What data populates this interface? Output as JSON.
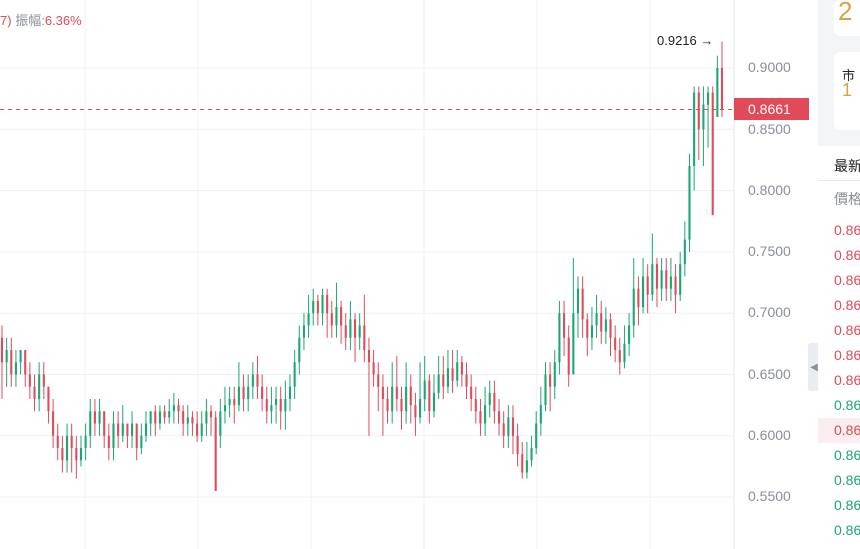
{
  "chart_info": {
    "prefix": "7)",
    "amplitude_label": "振幅:",
    "amplitude_value": "6.36%"
  },
  "current_price": "0.8661",
  "max_label": "0.9216 →",
  "colors": {
    "up": "#e04a59",
    "down": "#19a774",
    "grid": "#eef0f3",
    "accent": "#d9a441"
  },
  "right_panel": {
    "card1_text": "2",
    "card2_small": "市",
    "card2_big": "1",
    "tab_label": "最新",
    "price_header": "價格",
    "order_rows": [
      {
        "price": "0.86",
        "side": "sell"
      },
      {
        "price": "0.86",
        "side": "sell"
      },
      {
        "price": "0.86",
        "side": "sell"
      },
      {
        "price": "0.86",
        "side": "sell"
      },
      {
        "price": "0.86",
        "side": "sell"
      },
      {
        "price": "0.86",
        "side": "sell"
      },
      {
        "price": "0.86",
        "side": "sell"
      },
      {
        "price": "0.86",
        "side": "buy"
      },
      {
        "price": "0.86",
        "side": "sell"
      },
      {
        "price": "0.86",
        "side": "buy"
      },
      {
        "price": "0.86",
        "side": "buy"
      },
      {
        "price": "0.86",
        "side": "buy"
      },
      {
        "price": "0.86",
        "side": "buy"
      }
    ]
  },
  "chart_data": {
    "type": "candlestick",
    "y_ticks": [
      "0.9000",
      "0.8500",
      "0.8000",
      "0.7500",
      "0.7000",
      "0.6500",
      "0.6000",
      "0.5500"
    ],
    "y_range": [
      0.5,
      0.95
    ],
    "grid": true,
    "last_price": 0.8661,
    "max_price": 0.9216,
    "candles": [
      [
        0.68,
        0.66,
        0.69,
        0.63
      ],
      [
        0.66,
        0.67,
        0.68,
        0.64
      ],
      [
        0.67,
        0.65,
        0.68,
        0.64
      ],
      [
        0.65,
        0.66,
        0.67,
        0.64
      ],
      [
        0.66,
        0.67,
        0.67,
        0.65
      ],
      [
        0.67,
        0.65,
        0.67,
        0.64
      ],
      [
        0.65,
        0.64,
        0.66,
        0.63
      ],
      [
        0.64,
        0.63,
        0.65,
        0.62
      ],
      [
        0.63,
        0.65,
        0.66,
        0.62
      ],
      [
        0.65,
        0.64,
        0.66,
        0.63
      ],
      [
        0.64,
        0.62,
        0.64,
        0.61
      ],
      [
        0.62,
        0.6,
        0.63,
        0.59
      ],
      [
        0.6,
        0.59,
        0.61,
        0.58
      ],
      [
        0.59,
        0.58,
        0.6,
        0.57
      ],
      [
        0.58,
        0.6,
        0.61,
        0.57
      ],
      [
        0.6,
        0.59,
        0.61,
        0.57
      ],
      [
        0.59,
        0.58,
        0.6,
        0.565
      ],
      [
        0.58,
        0.59,
        0.6,
        0.575
      ],
      [
        0.59,
        0.6,
        0.61,
        0.58
      ],
      [
        0.6,
        0.62,
        0.63,
        0.59
      ],
      [
        0.62,
        0.61,
        0.63,
        0.6
      ],
      [
        0.61,
        0.62,
        0.63,
        0.6
      ],
      [
        0.62,
        0.6,
        0.62,
        0.59
      ],
      [
        0.6,
        0.59,
        0.61,
        0.58
      ],
      [
        0.59,
        0.61,
        0.62,
        0.58
      ],
      [
        0.61,
        0.6,
        0.62,
        0.59
      ],
      [
        0.6,
        0.61,
        0.625,
        0.595
      ],
      [
        0.61,
        0.6,
        0.61,
        0.59
      ],
      [
        0.6,
        0.61,
        0.62,
        0.59
      ],
      [
        0.61,
        0.59,
        0.61,
        0.58
      ],
      [
        0.59,
        0.6,
        0.61,
        0.585
      ],
      [
        0.6,
        0.61,
        0.62,
        0.595
      ],
      [
        0.61,
        0.62,
        0.62,
        0.6
      ],
      [
        0.62,
        0.61,
        0.625,
        0.6
      ],
      [
        0.61,
        0.62,
        0.625,
        0.605
      ],
      [
        0.62,
        0.615,
        0.625,
        0.61
      ],
      [
        0.615,
        0.62,
        0.63,
        0.61
      ],
      [
        0.62,
        0.625,
        0.635,
        0.61
      ],
      [
        0.625,
        0.62,
        0.63,
        0.61
      ],
      [
        0.62,
        0.61,
        0.625,
        0.6
      ],
      [
        0.61,
        0.615,
        0.625,
        0.6
      ],
      [
        0.615,
        0.61,
        0.62,
        0.6
      ],
      [
        0.61,
        0.6,
        0.62,
        0.595
      ],
      [
        0.6,
        0.61,
        0.62,
        0.595
      ],
      [
        0.61,
        0.62,
        0.63,
        0.6
      ],
      [
        0.62,
        0.615,
        0.625,
        0.6
      ],
      [
        0.615,
        0.555,
        0.62,
        0.555
      ],
      [
        0.6,
        0.62,
        0.63,
        0.59
      ],
      [
        0.62,
        0.625,
        0.64,
        0.61
      ],
      [
        0.625,
        0.63,
        0.64,
        0.615
      ],
      [
        0.63,
        0.625,
        0.64,
        0.61
      ],
      [
        0.625,
        0.64,
        0.66,
        0.62
      ],
      [
        0.64,
        0.63,
        0.65,
        0.62
      ],
      [
        0.63,
        0.64,
        0.65,
        0.62
      ],
      [
        0.64,
        0.65,
        0.66,
        0.63
      ],
      [
        0.65,
        0.64,
        0.665,
        0.63
      ],
      [
        0.64,
        0.63,
        0.65,
        0.62
      ],
      [
        0.63,
        0.62,
        0.64,
        0.61
      ],
      [
        0.62,
        0.625,
        0.64,
        0.61
      ],
      [
        0.625,
        0.63,
        0.64,
        0.61
      ],
      [
        0.63,
        0.62,
        0.64,
        0.605
      ],
      [
        0.62,
        0.63,
        0.645,
        0.605
      ],
      [
        0.63,
        0.64,
        0.65,
        0.62
      ],
      [
        0.64,
        0.66,
        0.67,
        0.63
      ],
      [
        0.66,
        0.68,
        0.69,
        0.65
      ],
      [
        0.68,
        0.69,
        0.7,
        0.67
      ],
      [
        0.69,
        0.7,
        0.715,
        0.68
      ],
      [
        0.7,
        0.71,
        0.72,
        0.69
      ],
      [
        0.71,
        0.7,
        0.715,
        0.69
      ],
      [
        0.7,
        0.715,
        0.72,
        0.69
      ],
      [
        0.715,
        0.7,
        0.72,
        0.68
      ],
      [
        0.7,
        0.69,
        0.71,
        0.68
      ],
      [
        0.69,
        0.705,
        0.725,
        0.68
      ],
      [
        0.705,
        0.69,
        0.71,
        0.675
      ],
      [
        0.69,
        0.68,
        0.7,
        0.67
      ],
      [
        0.68,
        0.695,
        0.71,
        0.67
      ],
      [
        0.695,
        0.68,
        0.7,
        0.66
      ],
      [
        0.68,
        0.69,
        0.7,
        0.67
      ],
      [
        0.69,
        0.67,
        0.715,
        0.66
      ],
      [
        0.67,
        0.66,
        0.68,
        0.6
      ],
      [
        0.66,
        0.65,
        0.67,
        0.64
      ],
      [
        0.65,
        0.64,
        0.66,
        0.62
      ],
      [
        0.64,
        0.63,
        0.65,
        0.6
      ],
      [
        0.63,
        0.62,
        0.64,
        0.61
      ],
      [
        0.62,
        0.64,
        0.66,
        0.61
      ],
      [
        0.64,
        0.63,
        0.665,
        0.62
      ],
      [
        0.63,
        0.62,
        0.64,
        0.605
      ],
      [
        0.62,
        0.64,
        0.66,
        0.61
      ],
      [
        0.64,
        0.625,
        0.65,
        0.61
      ],
      [
        0.625,
        0.615,
        0.635,
        0.6
      ],
      [
        0.615,
        0.63,
        0.66,
        0.61
      ],
      [
        0.63,
        0.645,
        0.665,
        0.62
      ],
      [
        0.645,
        0.62,
        0.65,
        0.61
      ],
      [
        0.62,
        0.635,
        0.65,
        0.615
      ],
      [
        0.635,
        0.65,
        0.665,
        0.63
      ],
      [
        0.65,
        0.64,
        0.665,
        0.63
      ],
      [
        0.64,
        0.655,
        0.67,
        0.635
      ],
      [
        0.655,
        0.645,
        0.67,
        0.635
      ],
      [
        0.645,
        0.66,
        0.67,
        0.64
      ],
      [
        0.66,
        0.65,
        0.665,
        0.64
      ],
      [
        0.65,
        0.64,
        0.66,
        0.63
      ],
      [
        0.64,
        0.63,
        0.65,
        0.62
      ],
      [
        0.63,
        0.62,
        0.64,
        0.61
      ],
      [
        0.62,
        0.61,
        0.63,
        0.6
      ],
      [
        0.61,
        0.625,
        0.64,
        0.6
      ],
      [
        0.625,
        0.635,
        0.645,
        0.615
      ],
      [
        0.635,
        0.62,
        0.645,
        0.61
      ],
      [
        0.62,
        0.61,
        0.63,
        0.6
      ],
      [
        0.61,
        0.6,
        0.62,
        0.59
      ],
      [
        0.6,
        0.615,
        0.625,
        0.59
      ],
      [
        0.615,
        0.6,
        0.625,
        0.585
      ],
      [
        0.6,
        0.585,
        0.61,
        0.575
      ],
      [
        0.585,
        0.57,
        0.595,
        0.565
      ],
      [
        0.57,
        0.58,
        0.595,
        0.565
      ],
      [
        0.58,
        0.59,
        0.6,
        0.575
      ],
      [
        0.59,
        0.61,
        0.62,
        0.585
      ],
      [
        0.61,
        0.625,
        0.64,
        0.6
      ],
      [
        0.625,
        0.65,
        0.66,
        0.62
      ],
      [
        0.65,
        0.64,
        0.66,
        0.62
      ],
      [
        0.64,
        0.66,
        0.67,
        0.63
      ],
      [
        0.66,
        0.7,
        0.71,
        0.65
      ],
      [
        0.7,
        0.68,
        0.71,
        0.665
      ],
      [
        0.68,
        0.65,
        0.69,
        0.64
      ],
      [
        0.65,
        0.7,
        0.745,
        0.65
      ],
      [
        0.7,
        0.72,
        0.73,
        0.68
      ],
      [
        0.72,
        0.695,
        0.73,
        0.68
      ],
      [
        0.695,
        0.68,
        0.7,
        0.665
      ],
      [
        0.68,
        0.69,
        0.705,
        0.67
      ],
      [
        0.69,
        0.7,
        0.715,
        0.68
      ],
      [
        0.7,
        0.685,
        0.71,
        0.675
      ],
      [
        0.685,
        0.695,
        0.705,
        0.675
      ],
      [
        0.695,
        0.68,
        0.7,
        0.665
      ],
      [
        0.68,
        0.67,
        0.69,
        0.66
      ],
      [
        0.67,
        0.66,
        0.68,
        0.65
      ],
      [
        0.66,
        0.675,
        0.69,
        0.655
      ],
      [
        0.675,
        0.69,
        0.7,
        0.665
      ],
      [
        0.69,
        0.72,
        0.745,
        0.68
      ],
      [
        0.72,
        0.705,
        0.73,
        0.69
      ],
      [
        0.705,
        0.73,
        0.745,
        0.7
      ],
      [
        0.73,
        0.715,
        0.74,
        0.7
      ],
      [
        0.715,
        0.74,
        0.765,
        0.71
      ],
      [
        0.74,
        0.72,
        0.745,
        0.705
      ],
      [
        0.72,
        0.735,
        0.745,
        0.71
      ],
      [
        0.735,
        0.72,
        0.745,
        0.71
      ],
      [
        0.72,
        0.73,
        0.745,
        0.71
      ],
      [
        0.73,
        0.715,
        0.74,
        0.7
      ],
      [
        0.715,
        0.74,
        0.75,
        0.71
      ],
      [
        0.74,
        0.76,
        0.775,
        0.73
      ],
      [
        0.76,
        0.82,
        0.83,
        0.75
      ],
      [
        0.82,
        0.88,
        0.885,
        0.8
      ],
      [
        0.88,
        0.85,
        0.885,
        0.825
      ],
      [
        0.85,
        0.87,
        0.885,
        0.82
      ],
      [
        0.87,
        0.88,
        0.885,
        0.835
      ],
      [
        0.88,
        0.78,
        0.885,
        0.78
      ],
      [
        0.86,
        0.9,
        0.91,
        0.86
      ],
      [
        0.9,
        0.8661,
        0.9216,
        0.86
      ]
    ]
  }
}
